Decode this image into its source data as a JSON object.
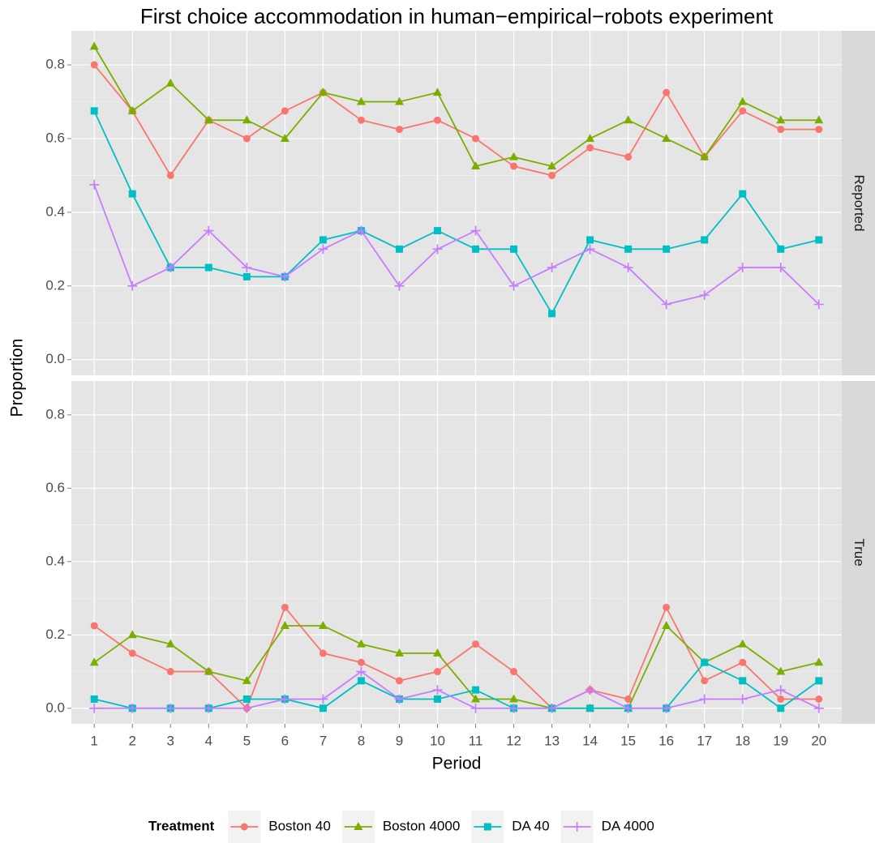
{
  "chart_data": {
    "type": "line",
    "title": "First choice accommodation in human−empirical−robots experiment",
    "x_label": "Period",
    "y_label": "Proportion",
    "legend_title": "Treatment",
    "legend_position": "bottom",
    "grid": true,
    "x": [
      1,
      2,
      3,
      4,
      5,
      6,
      7,
      8,
      9,
      10,
      11,
      12,
      13,
      14,
      15,
      16,
      17,
      18,
      19,
      20
    ],
    "xlim": [
      0.4,
      20.6
    ],
    "xticks": [
      1,
      2,
      3,
      4,
      5,
      6,
      7,
      8,
      9,
      10,
      11,
      12,
      13,
      14,
      15,
      16,
      17,
      18,
      19,
      20
    ],
    "ylim": [
      -0.0425,
      0.8925
    ],
    "yticks": [
      {
        "value": 0,
        "label": "0.0"
      },
      0.2,
      0.4,
      0.6,
      0.8
    ],
    "facets": [
      {
        "label": "Reported",
        "series": [
          {
            "name": "Boston 40",
            "color": "#F8766D",
            "shape": "circle",
            "values": [
              0.8,
              0.675,
              0.5,
              0.65,
              0.6,
              0.675,
              0.725,
              0.65,
              0.625,
              0.65,
              0.6,
              0.525,
              0.5,
              0.575,
              0.55,
              0.725,
              0.55,
              0.675,
              0.625,
              0.625
            ]
          },
          {
            "name": "Boston 4000",
            "color": "#7CAE00",
            "shape": "triangle",
            "values": [
              0.85,
              0.675,
              0.75,
              0.65,
              0.65,
              0.6,
              0.725,
              0.7,
              0.7,
              0.725,
              0.525,
              0.55,
              0.525,
              0.6,
              0.65,
              0.6,
              0.55,
              0.7,
              0.65,
              0.65
            ]
          },
          {
            "name": "DA 40",
            "color": "#00BFC4",
            "shape": "square",
            "values": [
              0.675,
              0.45,
              0.25,
              0.25,
              0.225,
              0.225,
              0.325,
              0.35,
              0.3,
              0.35,
              0.3,
              0.3,
              0.125,
              0.325,
              0.3,
              0.3,
              0.325,
              0.45,
              0.3,
              0.325
            ]
          },
          {
            "name": "DA 4000",
            "color": "#C77CFF",
            "shape": "plus",
            "values": [
              0.475,
              0.2,
              0.25,
              0.35,
              0.25,
              0.225,
              0.3,
              0.35,
              0.2,
              0.3,
              0.35,
              0.2,
              0.25,
              0.3,
              0.25,
              0.15,
              0.175,
              0.25,
              0.25,
              0.15
            ]
          }
        ]
      },
      {
        "label": "True",
        "series": [
          {
            "name": "Boston 40",
            "color": "#F8766D",
            "shape": "circle",
            "values": [
              0.225,
              0.15,
              0.1,
              0.1,
              0,
              0.275,
              0.15,
              0.125,
              0.075,
              0.1,
              0.175,
              0.1,
              0,
              0.05,
              0.025,
              0.275,
              0.075,
              0.125,
              0.025,
              0.025
            ]
          },
          {
            "name": "Boston 4000",
            "color": "#7CAE00",
            "shape": "triangle",
            "values": [
              0.125,
              0.2,
              0.175,
              0.1,
              0.075,
              0.225,
              0.225,
              0.175,
              0.15,
              0.15,
              0.025,
              0.025,
              0,
              0,
              0,
              0.225,
              0.125,
              0.175,
              0.1,
              0.125
            ]
          },
          {
            "name": "DA 40",
            "color": "#00BFC4",
            "shape": "square",
            "values": [
              0.025,
              0,
              0,
              0,
              0.025,
              0.025,
              0,
              0.075,
              0.025,
              0.025,
              0.05,
              0,
              0,
              0,
              0,
              0,
              0.125,
              0.075,
              0,
              0.075
            ]
          },
          {
            "name": "DA 4000",
            "color": "#C77CFF",
            "shape": "plus",
            "values": [
              0,
              0,
              0,
              0,
              0,
              0.025,
              0.025,
              0.1,
              0.025,
              0.05,
              0,
              0,
              0,
              0.05,
              0,
              0,
              0.025,
              0.025,
              0.05,
              0
            ]
          }
        ]
      }
    ]
  }
}
